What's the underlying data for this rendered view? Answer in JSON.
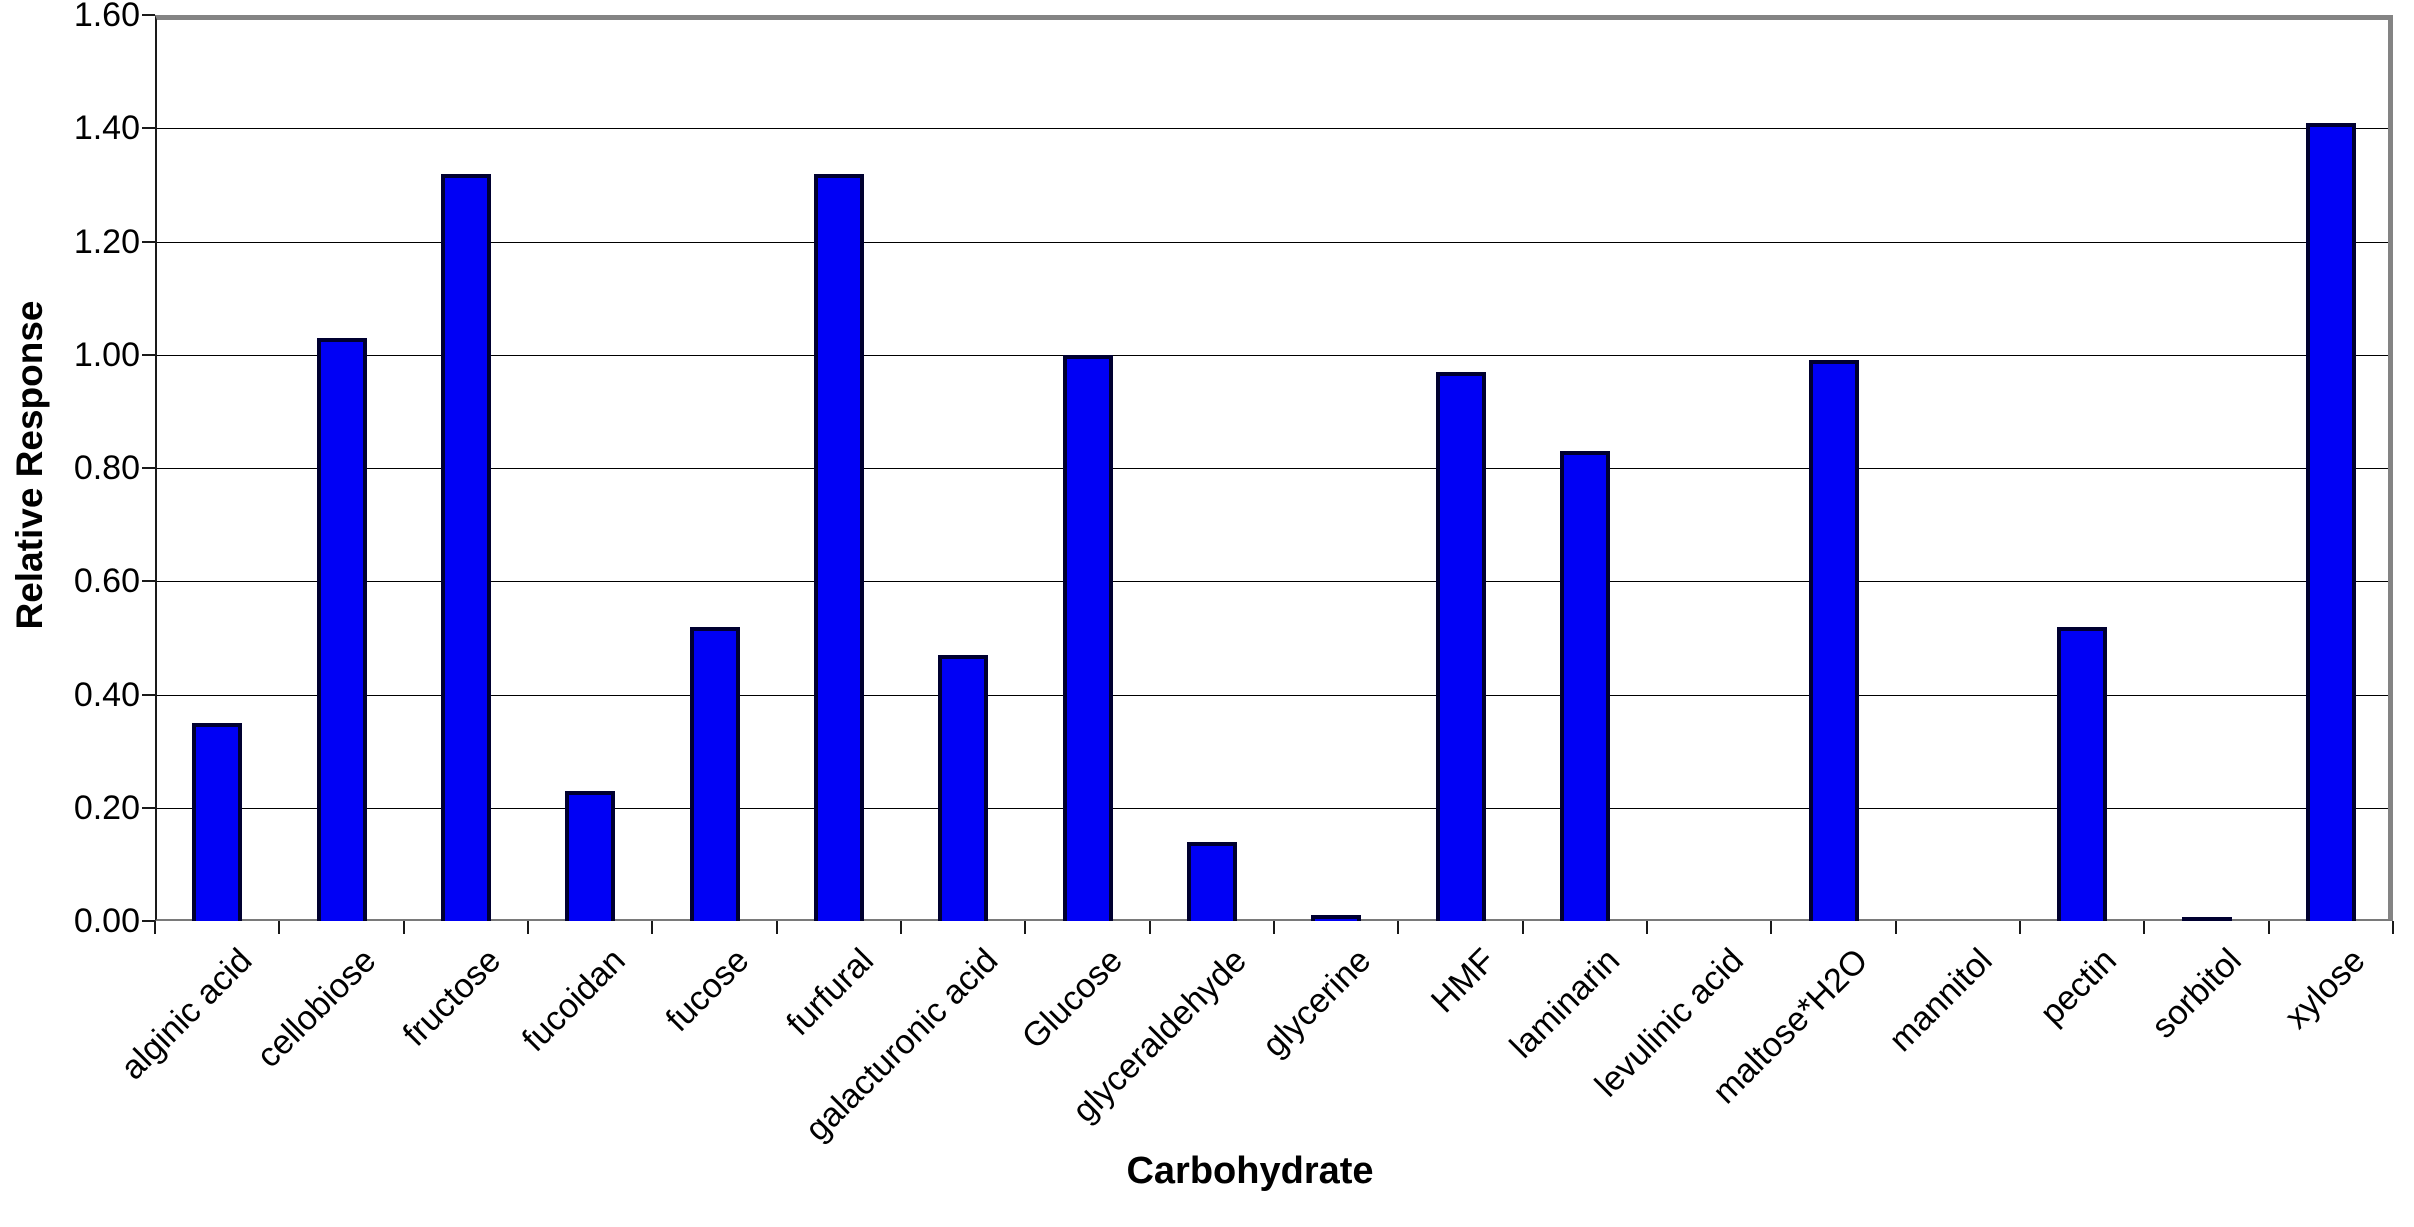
{
  "chart_data": {
    "type": "bar",
    "title": "",
    "xlabel": "Carbohydrate",
    "ylabel": "Relative Response",
    "categories": [
      "alginic acid",
      "cellobiose",
      "fructose",
      "fucoidan",
      "fucose",
      "furfural",
      "galacturonic acid",
      "Glucose",
      "glyceraldehyde",
      "glycerine",
      "HMF",
      "laminarin",
      "levulinic acid",
      "maltose*H2O",
      "mannitol",
      "pectin",
      "sorbitol",
      "xylose"
    ],
    "values": [
      0.35,
      1.03,
      1.32,
      0.23,
      0.52,
      1.32,
      0.47,
      1.0,
      0.14,
      0.01,
      0.97,
      0.83,
      0.0,
      0.99,
      0.0,
      0.52,
      0.005,
      1.41
    ],
    "ylim": [
      0,
      1.6
    ],
    "ytick_step": 0.2,
    "ytick_labels": [
      "0.00",
      "0.20",
      "0.40",
      "0.60",
      "0.80",
      "1.00",
      "1.20",
      "1.40",
      "1.60"
    ],
    "grid": "horizontal",
    "legend": "none",
    "colors": {
      "bar_fill": "#0000f5",
      "bar_border": "#000030",
      "plot_border": "#848484",
      "gridline": "#000000",
      "text": "#000000"
    }
  }
}
